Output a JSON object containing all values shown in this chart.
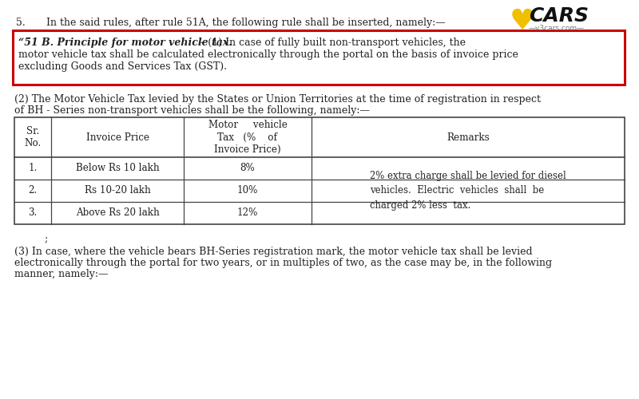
{
  "bg_color": "#ffffff",
  "text_color": "#222222",
  "p5_num": "5.",
  "p5_body": "In the said rules, after rule 51A, the following rule shall be inserted, namely:—",
  "box_bold": "“51 B. Principle for motor vehicle tax.",
  "box_rest_line1": " – (1) In case of fully built non-transport vehicles, the",
  "box_line2": "motor vehicle tax shall be calculated electronically through the portal on the basis of invoice price",
  "box_line3": "excluding Goods and Services Tax (GST).",
  "p2_line1": "(2) The Motor Vehicle Tax levied by the States or Union Territories at the time of registration in respect",
  "p2_line2": "of BH - Series non-transport vehicles shall be the following, namely:—",
  "th_srno": "Sr.\nNo.",
  "th_invoice": "Invoice Price",
  "th_motor": "Motor     vehicle\nTax   (%    of\nInvoice Price)",
  "th_remarks": "Remarks",
  "r1_sr": "1.",
  "r1_inv": "Below Rs 10 lakh",
  "r1_tax": "8%",
  "r2_sr": "2.",
  "r2_inv": "Rs 10-20 lakh",
  "r2_tax": "10%",
  "r3_sr": "3.",
  "r3_inv": "Above Rs 20 lakh",
  "r3_tax": "12%",
  "remarks_line1": "2% extra charge shall be levied for diesel",
  "remarks_line2": "vehicles.  Electric  vehicles  shall  be",
  "remarks_line3": "charged 2% less  tax.",
  "semicolon": ";",
  "p3_line1": "(3) In case, where the vehicle bears BH-Series registration mark, the motor vehicle tax shall be levied",
  "p3_line2": "electronically through the portal for two years, or in multiples of two, as the case may be, in the following",
  "p3_line3": "manner, namely:—",
  "logo_heart_color": "#f0c000",
  "logo_text_color": "#111111",
  "logo_sub_color": "#777777",
  "box_border_color": "#cc0000",
  "table_border_color": "#444444",
  "font_size_main": 9.0,
  "font_size_table": 8.6,
  "font_size_logo": 18,
  "font_size_sub": 6.5
}
